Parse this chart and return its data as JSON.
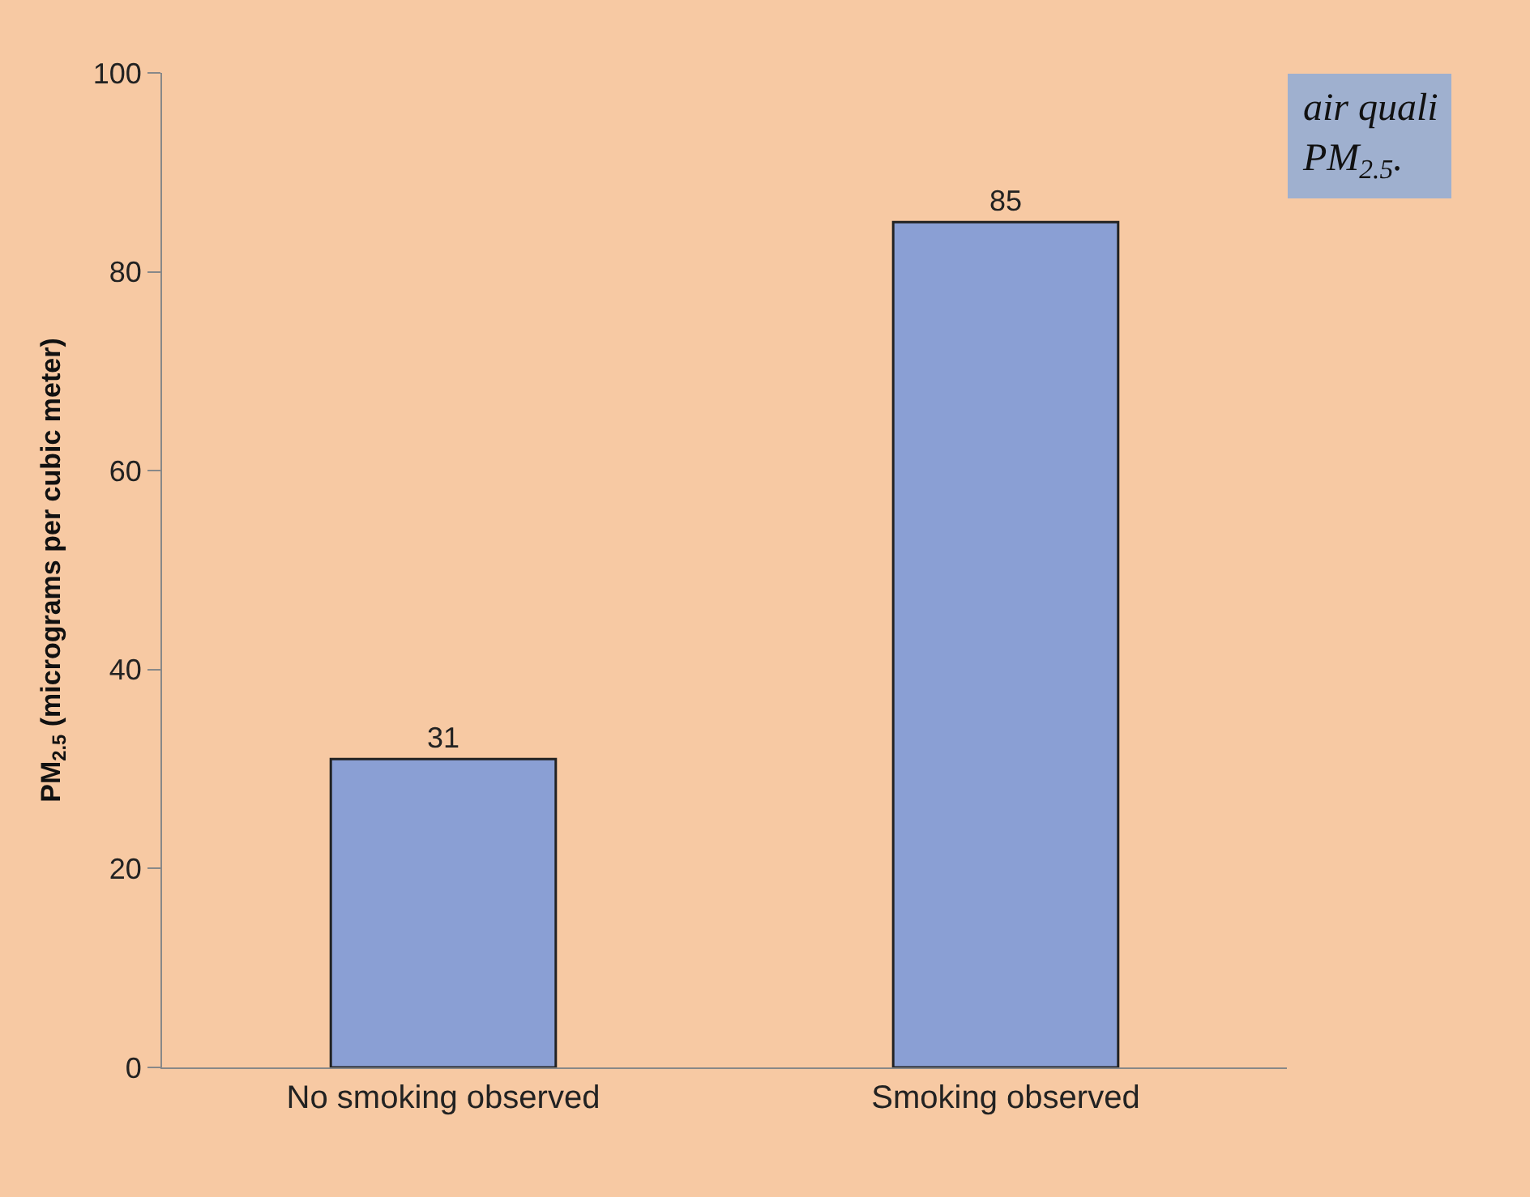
{
  "chart_data": {
    "type": "bar",
    "ylabel": "PM$_{2.5}$ (micrograms per cubic meter)",
    "categories": [
      "No smoking observed",
      "Smoking observed"
    ],
    "values": [
      31,
      85
    ],
    "color": "#8a9fd4",
    "ylim": [
      0,
      100
    ],
    "yticks": [
      0,
      20,
      40,
      60,
      80,
      100
    ],
    "data_labels": true,
    "grid": false,
    "annotations": [
      "air quali\nPM$_{2.5}$."
    ]
  }
}
